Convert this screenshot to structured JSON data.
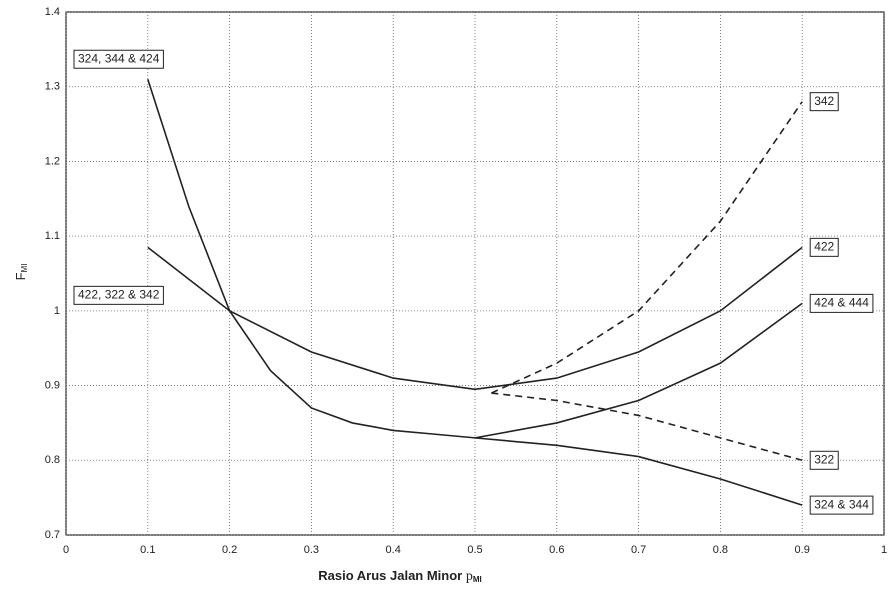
{
  "chart_data": {
    "type": "line",
    "xlabel": "Rasio Arus Jalan Minor",
    "xlabel_symbol": "p",
    "xlabel_subscript": "MI",
    "ylabel": "F",
    "ylabel_subscript": "MI",
    "xlim": [
      0,
      1
    ],
    "xticks": [
      0,
      0.1,
      0.2,
      0.3,
      0.4,
      0.5,
      0.6,
      0.7,
      0.8,
      0.9,
      1
    ],
    "ylim": [
      0.7,
      1.4
    ],
    "yticks": [
      0.7,
      0.8,
      0.9,
      1,
      1.1,
      1.2,
      1.3,
      1.4
    ],
    "grid": true,
    "series": [
      {
        "name": "324, 344 & 424",
        "color": "#222222",
        "dashed": false,
        "x": [
          0.1,
          0.15,
          0.2,
          0.25,
          0.3,
          0.35,
          0.4,
          0.45,
          0.5
        ],
        "values": [
          1.31,
          1.14,
          1.0,
          0.92,
          0.87,
          0.85,
          0.84,
          0.835,
          0.83
        ]
      },
      {
        "name": "422, 322 & 342",
        "color": "#222222",
        "dashed": false,
        "x": [
          0.1,
          0.2,
          0.3,
          0.4,
          0.5
        ],
        "values": [
          1.085,
          1.0,
          0.945,
          0.91,
          0.895
        ]
      },
      {
        "name": "342",
        "color": "#222222",
        "dashed": true,
        "x": [
          0.52,
          0.6,
          0.7,
          0.8,
          0.9
        ],
        "values": [
          0.89,
          0.93,
          1.0,
          1.12,
          1.28
        ]
      },
      {
        "name": "422",
        "color": "#222222",
        "dashed": false,
        "x": [
          0.5,
          0.6,
          0.7,
          0.8,
          0.9
        ],
        "values": [
          0.895,
          0.91,
          0.945,
          1.0,
          1.085
        ]
      },
      {
        "name": "424 & 444",
        "color": "#222222",
        "dashed": false,
        "x": [
          0.5,
          0.6,
          0.7,
          0.8,
          0.9
        ],
        "values": [
          0.83,
          0.85,
          0.88,
          0.93,
          1.01
        ]
      },
      {
        "name": "322",
        "color": "#222222",
        "dashed": true,
        "x": [
          0.52,
          0.6,
          0.7,
          0.8,
          0.9
        ],
        "values": [
          0.89,
          0.88,
          0.86,
          0.83,
          0.8
        ]
      },
      {
        "name": "324 & 344",
        "color": "#222222",
        "dashed": false,
        "x": [
          0.5,
          0.6,
          0.7,
          0.8,
          0.9
        ],
        "values": [
          0.83,
          0.82,
          0.805,
          0.775,
          0.74
        ]
      }
    ]
  }
}
